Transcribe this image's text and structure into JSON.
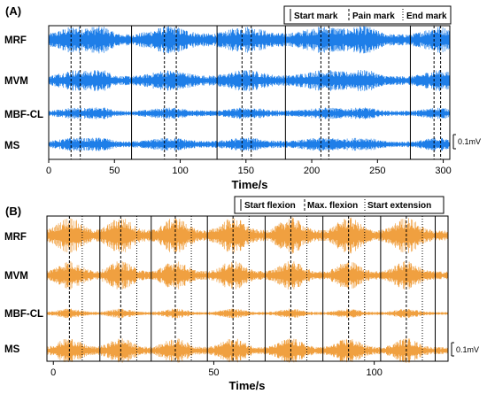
{
  "chart_data": [
    {
      "panel": "(A)",
      "type": "line",
      "xlabel": "Time/s",
      "xlim": [
        0,
        305
      ],
      "xticks": [
        0,
        50,
        100,
        150,
        200,
        250,
        300
      ],
      "channels": [
        "MRF",
        "MVM",
        "MBF-CL",
        "MS"
      ],
      "color": "#1e7ee8",
      "legend": [
        "Start mark",
        "Pain mark",
        "End mark"
      ],
      "start_marks": [
        63,
        128,
        180,
        275
      ],
      "pain_marks": [
        17,
        24,
        88,
        97,
        147,
        154,
        207,
        213,
        293,
        298
      ],
      "end_marks": [],
      "scale_bar": "0.1mV"
    },
    {
      "panel": "(B)",
      "type": "line",
      "xlabel": "Time/s",
      "xlim": [
        -2,
        123
      ],
      "xticks": [
        0,
        50,
        100
      ],
      "channels": [
        "MRF",
        "MVM",
        "MBF-CL",
        "MS"
      ],
      "color": "#f0a040",
      "legend": [
        "Start flexion",
        "Max. flexion",
        "Start extension"
      ],
      "start_flexion": [
        14.5,
        30.5,
        48,
        66,
        84,
        102,
        119
      ],
      "max_flexion": [
        5,
        21,
        38,
        56,
        74,
        92,
        110
      ],
      "start_extension": [
        9,
        26,
        43,
        61,
        79,
        97,
        115
      ],
      "scale_bar": "0.1mV"
    }
  ]
}
